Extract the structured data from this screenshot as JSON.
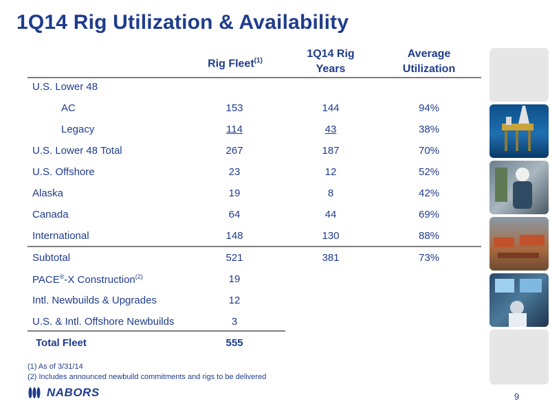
{
  "title": "1Q14 Rig Utilization & Availability",
  "headers": {
    "rig_fleet": "Rig Fleet",
    "rig_fleet_note": "(1)",
    "rig_years_line1": "1Q14 Rig",
    "rig_years_line2": "Years",
    "utilization_line1": "Average",
    "utilization_line2": "Utilization"
  },
  "rows": {
    "us_lower48": {
      "label": "U.S. Lower 48"
    },
    "ac": {
      "label": "AC",
      "fleet": "153",
      "years": "144",
      "util": "94%"
    },
    "legacy": {
      "label": "Legacy",
      "fleet": "114",
      "years": "43",
      "util": "38%"
    },
    "lower48_total": {
      "label": "U.S. Lower 48 Total",
      "fleet": "267",
      "years": "187",
      "util": "70%"
    },
    "us_offshore": {
      "label": "U.S. Offshore",
      "fleet": "23",
      "years": "12",
      "util": "52%"
    },
    "alaska": {
      "label": "Alaska",
      "fleet": "19",
      "years": "8",
      "util": "42%"
    },
    "canada": {
      "label": "Canada",
      "fleet": "64",
      "years": "44",
      "util": "69%"
    },
    "international": {
      "label": "International",
      "fleet": "148",
      "years": "130",
      "util": "88%"
    },
    "subtotal": {
      "label": "Subtotal",
      "fleet": "521",
      "years": "381",
      "util": "73%"
    },
    "pace": {
      "label_a": "PACE",
      "reg": "®",
      "label_b": "-X Construction",
      "note": "(2)",
      "fleet": "19"
    },
    "intl_newbuilds": {
      "label": "Intl. Newbuilds & Upgrades",
      "fleet": "12"
    },
    "offshore_newbuilds": {
      "label": "U.S. & Intl. Offshore Newbuilds",
      "fleet": "3"
    },
    "total_fleet": {
      "label": "Total Fleet",
      "fleet": "555"
    }
  },
  "footnotes": {
    "f1": "(1)  As of 3/31/14",
    "f2": "(2)  Includes announced newbuild commitments and rigs to be delivered"
  },
  "logo_text": "NABORS",
  "page_number": "9",
  "colors": {
    "navy": "#1f3c8c",
    "rule": "#7f7f7f",
    "photo_frame": "#e6e6e6"
  }
}
